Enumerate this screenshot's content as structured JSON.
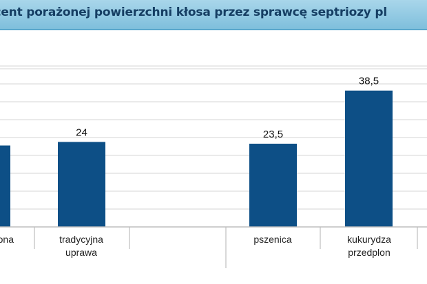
{
  "chart_data": {
    "type": "bar",
    "title": "ocent porażonej powierzchni kłosa przez sprawcę septriozy pl",
    "categories": [
      [
        "ona"
      ],
      [
        "tradycyjna",
        "uprawa"
      ],
      [],
      [
        "pszenica"
      ],
      [
        "kukurydza",
        "przedplon"
      ]
    ],
    "values": [
      null,
      24,
      null,
      23.5,
      38.5
    ],
    "value_labels": [
      "",
      "24",
      "",
      "23,5",
      "38,5"
    ],
    "partial_bar_value": 23,
    "ylim": [
      0,
      45
    ],
    "grid": true,
    "colors": {
      "bar": "#0d4f86",
      "grid": "#d6d6d6",
      "axis": "#bdbdbd"
    }
  }
}
